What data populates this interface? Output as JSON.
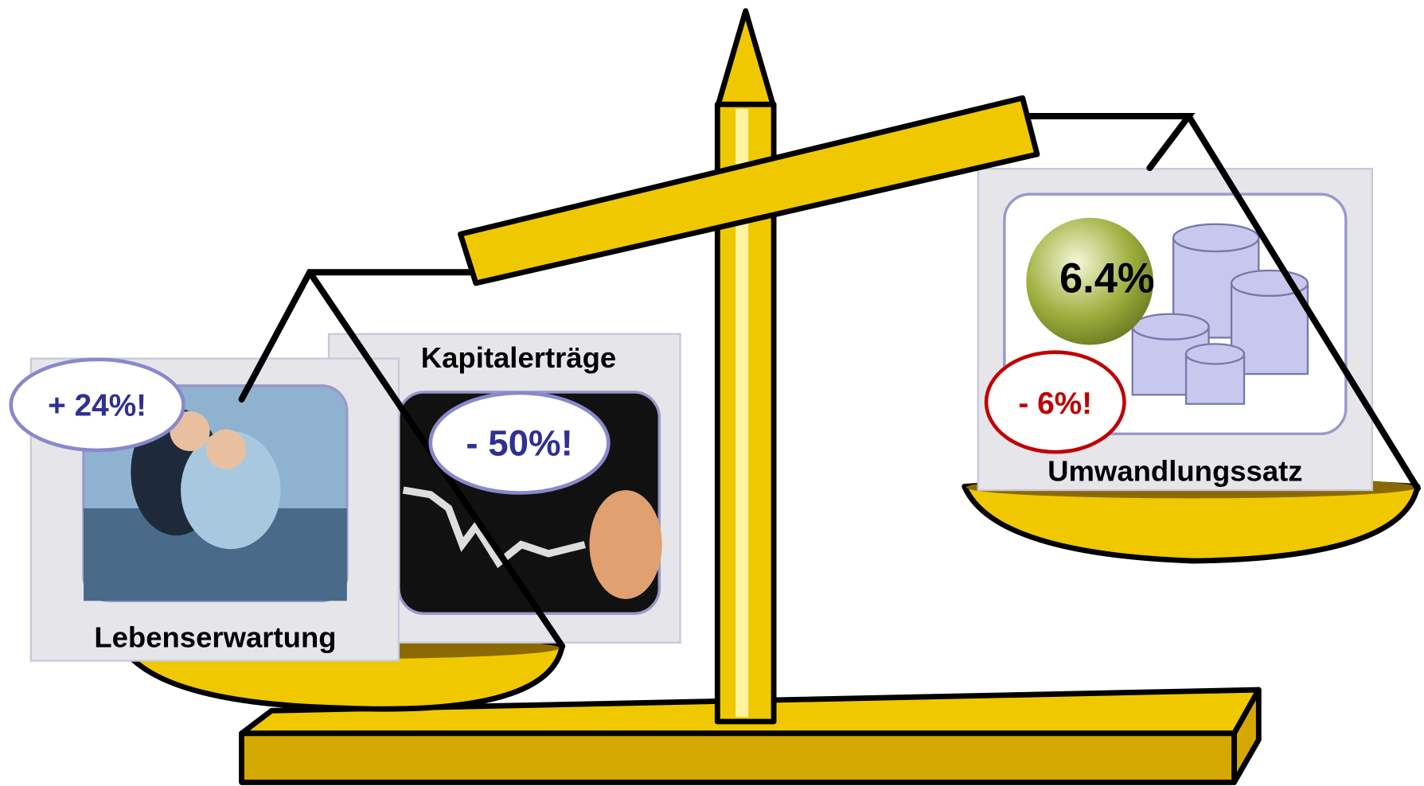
{
  "panels": [
    {
      "label": "Lebenserwartung",
      "badge": "+ 24%!"
    },
    {
      "label": "Kapitalerträge",
      "badge": "- 50%!"
    },
    {
      "label": "Umwandlungssatz",
      "badge": "- 6%!",
      "rate": "6.4%"
    }
  ]
}
